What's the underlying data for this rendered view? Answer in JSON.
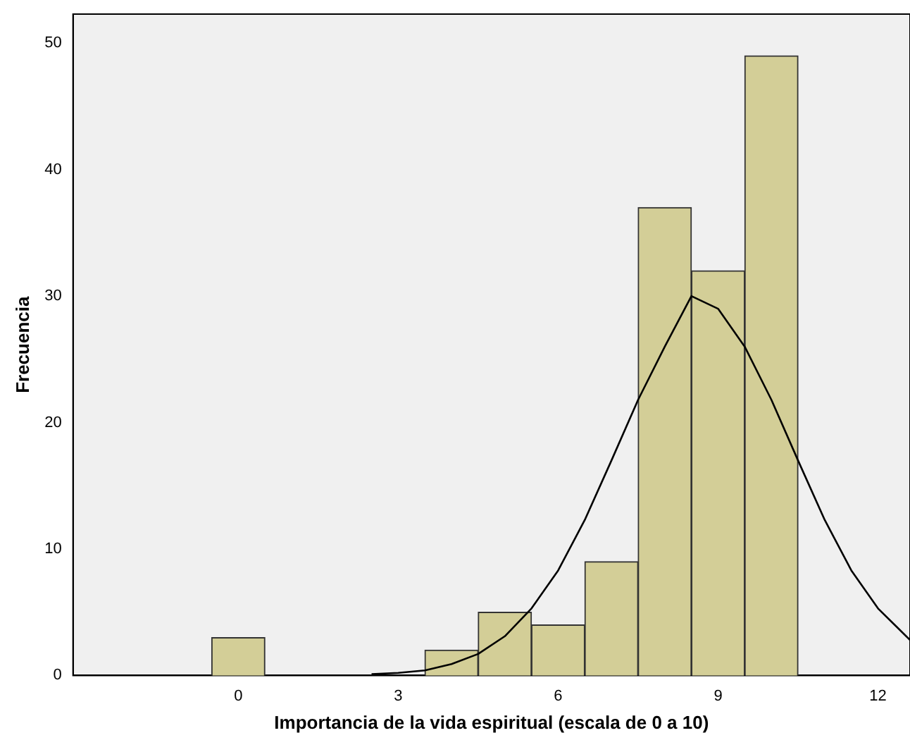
{
  "chart_data": {
    "type": "histogram",
    "xlabel": "Importancia de la vida espiritual (escala de 0 a 10)",
    "ylabel": "Frecuencia",
    "bins": [
      -0.5,
      0.5,
      1.5,
      2.5,
      3.5,
      4.5,
      5.5,
      6.5,
      7.5,
      8.5,
      9.5,
      10.5
    ],
    "values": [
      3,
      0,
      0,
      0,
      2,
      5,
      4,
      9,
      37,
      32,
      49
    ],
    "color": "#d3ce97",
    "series": [
      {
        "type": "line",
        "color": "#000000",
        "x": [
          2.5,
          3,
          3.5,
          4,
          4.5,
          5,
          5.5,
          6,
          6.5,
          7,
          7.5,
          8,
          8.5,
          9,
          9.5,
          10,
          10.5,
          11,
          11.5,
          12,
          12.6
        ],
        "values": [
          0.1,
          0.2,
          0.4,
          0.9,
          1.7,
          3.1,
          5.3,
          8.3,
          12.3,
          17,
          21.8,
          26,
          30,
          29,
          26,
          21.8,
          17,
          12.3,
          8.3,
          5.3,
          2.8
        ]
      }
    ],
    "xlim": [
      -3.1,
      12.6
    ],
    "ylim": [
      0,
      52.3
    ],
    "xticks": [
      0,
      3,
      6,
      9,
      12
    ],
    "yticks": [
      0,
      10,
      20,
      30,
      40,
      50
    ],
    "grid": false,
    "legend": false,
    "marker": "none"
  }
}
